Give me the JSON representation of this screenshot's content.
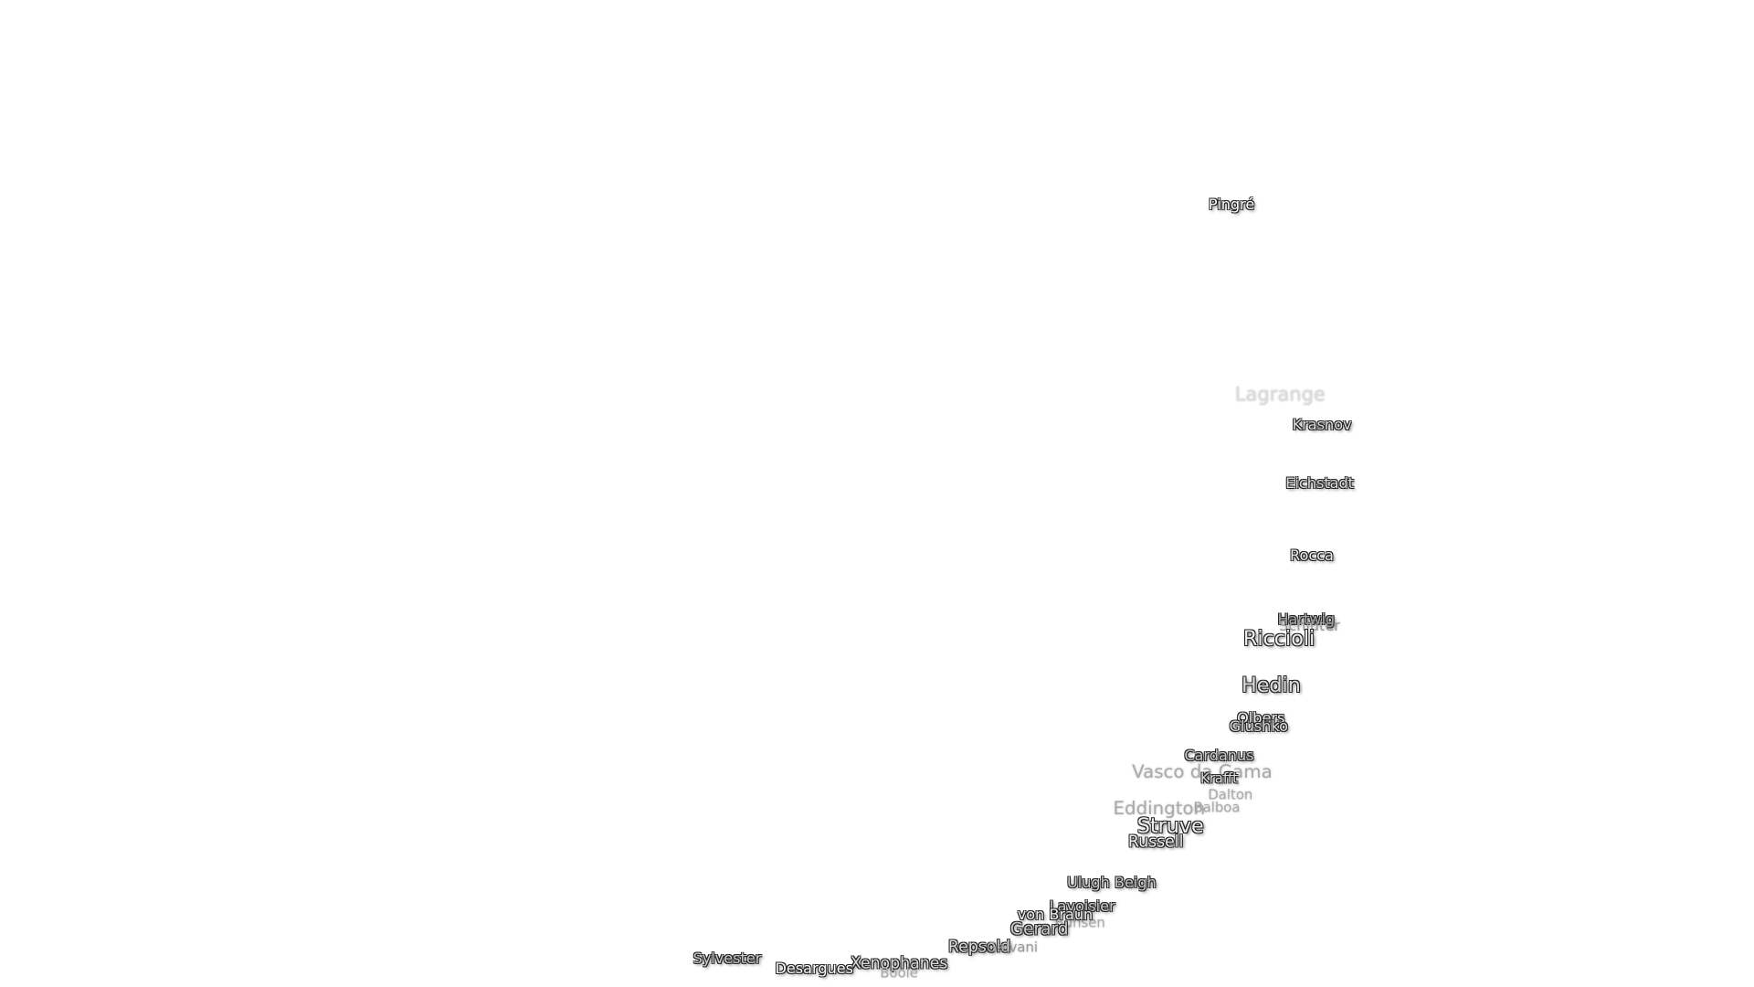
{
  "labels": [
    "Pingré",
    "Lagrange",
    "Krasnov",
    "Eichstadt",
    "Rocca",
    "Hartwig",
    "Schlüter",
    "Riccioli",
    "Hedin",
    "Olbers",
    "Glushko",
    "Cardanus",
    "Vasco da Gama",
    "Krafft",
    "Dalton",
    "Balboa",
    "Eddington",
    "Struve",
    "Russell",
    "Ulugh Beigh",
    "Lavoisier",
    "Bunsen",
    "von Braun",
    "Gerard",
    "Repsold",
    "Galvani",
    "Xenophanes",
    "Boole",
    "Desargues",
    "Sylvester"
  ]
}
